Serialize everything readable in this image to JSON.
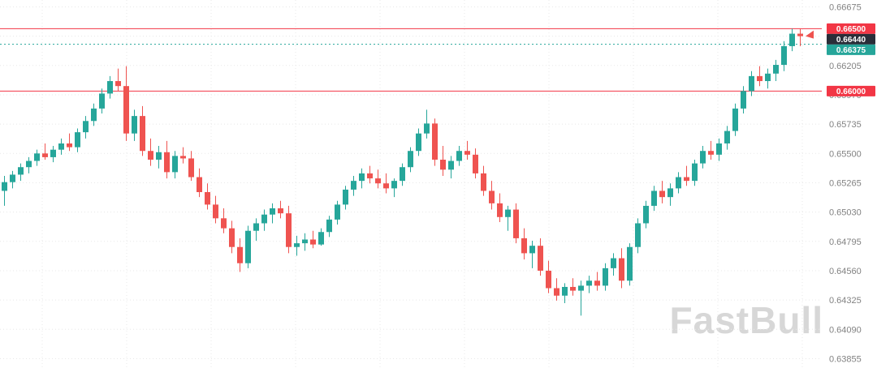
{
  "watermark": {
    "text": "FastBull"
  },
  "colors": {
    "up": "#26a69a",
    "down": "#ef5350",
    "level_red": "#f23645",
    "level_teal": "#26a69a",
    "last_price_box": "#2a2e39",
    "axis_text": "#828282",
    "grid": "#e8e8e8",
    "background": "#ffffff"
  },
  "chart_data": {
    "type": "candlestick",
    "ylim": [
      0.6378,
      0.6673
    ],
    "grid": true,
    "y_ticks": [
      "0.66675",
      "0.66440",
      "0.66205",
      "0.65970",
      "0.65735",
      "0.65500",
      "0.65265",
      "0.65030",
      "0.64795",
      "0.64560",
      "0.64325",
      "0.64090",
      "0.63855"
    ],
    "levels": [
      {
        "value": 0.665,
        "label": "0.66500",
        "style": "solid",
        "color": "#f23645",
        "box_bg": "#f23645"
      },
      {
        "value": 0.66,
        "label": "0.66000",
        "style": "solid",
        "color": "#f23645",
        "box_bg": "#f23645"
      },
      {
        "value": 0.66375,
        "label": "0.66375",
        "style": "dotted",
        "color": "#26a69a",
        "box_bg": "#26a69a"
      }
    ],
    "last_price": {
      "value": 0.6644,
      "label": "0.66440",
      "box_bg": "#2a2e39"
    },
    "candles": [
      [
        0.652,
        0.6532,
        0.6508,
        0.6527
      ],
      [
        0.6527,
        0.6536,
        0.6522,
        0.6533
      ],
      [
        0.6533,
        0.6542,
        0.6528,
        0.6539
      ],
      [
        0.6539,
        0.6547,
        0.6534,
        0.6544
      ],
      [
        0.6544,
        0.6553,
        0.654,
        0.655
      ],
      [
        0.655,
        0.6558,
        0.6545,
        0.6547
      ],
      [
        0.6547,
        0.6556,
        0.6543,
        0.6553
      ],
      [
        0.6553,
        0.6562,
        0.6549,
        0.6558
      ],
      [
        0.6558,
        0.6566,
        0.6552,
        0.6555
      ],
      [
        0.6555,
        0.657,
        0.6551,
        0.6567
      ],
      [
        0.6567,
        0.658,
        0.6562,
        0.6576
      ],
      [
        0.6576,
        0.659,
        0.6572,
        0.6586
      ],
      [
        0.6586,
        0.6602,
        0.6582,
        0.6598
      ],
      [
        0.6598,
        0.6612,
        0.6594,
        0.6608
      ],
      [
        0.6608,
        0.6618,
        0.66,
        0.6604
      ],
      [
        0.6604,
        0.662,
        0.656,
        0.6566
      ],
      [
        0.6566,
        0.6585,
        0.656,
        0.658
      ],
      [
        0.658,
        0.6588,
        0.6548,
        0.6552
      ],
      [
        0.6552,
        0.6562,
        0.654,
        0.6545
      ],
      [
        0.6545,
        0.6556,
        0.6538,
        0.6551
      ],
      [
        0.6551,
        0.656,
        0.653,
        0.6535
      ],
      [
        0.6535,
        0.6552,
        0.653,
        0.6548
      ],
      [
        0.6548,
        0.6555,
        0.6542,
        0.6546
      ],
      [
        0.6546,
        0.6552,
        0.6528,
        0.6531
      ],
      [
        0.6531,
        0.6538,
        0.6515,
        0.6519
      ],
      [
        0.6519,
        0.6526,
        0.6505,
        0.6509
      ],
      [
        0.6509,
        0.6516,
        0.6494,
        0.6498
      ],
      [
        0.6498,
        0.6506,
        0.6486,
        0.649
      ],
      [
        0.649,
        0.6496,
        0.647,
        0.6475
      ],
      [
        0.6475,
        0.6482,
        0.6455,
        0.6462
      ],
      [
        0.6462,
        0.6492,
        0.6458,
        0.6488
      ],
      [
        0.6488,
        0.6498,
        0.648,
        0.6494
      ],
      [
        0.6494,
        0.6505,
        0.6488,
        0.6501
      ],
      [
        0.6501,
        0.651,
        0.6494,
        0.6506
      ],
      [
        0.6506,
        0.6512,
        0.6498,
        0.6502
      ],
      [
        0.6502,
        0.6508,
        0.647,
        0.6475
      ],
      [
        0.6475,
        0.6484,
        0.6468,
        0.6478
      ],
      [
        0.6478,
        0.6486,
        0.6472,
        0.6481
      ],
      [
        0.6481,
        0.6488,
        0.6474,
        0.6477
      ],
      [
        0.6477,
        0.649,
        0.6476,
        0.6487
      ],
      [
        0.6487,
        0.65,
        0.6483,
        0.6497
      ],
      [
        0.6497,
        0.6512,
        0.6493,
        0.6509
      ],
      [
        0.6509,
        0.6524,
        0.6505,
        0.6521
      ],
      [
        0.6521,
        0.6532,
        0.6516,
        0.6528
      ],
      [
        0.6528,
        0.6538,
        0.6522,
        0.6534
      ],
      [
        0.6534,
        0.654,
        0.6526,
        0.653
      ],
      [
        0.653,
        0.6537,
        0.6522,
        0.6526
      ],
      [
        0.6526,
        0.6534,
        0.6518,
        0.6522
      ],
      [
        0.6522,
        0.653,
        0.6515,
        0.6528
      ],
      [
        0.6528,
        0.6542,
        0.6524,
        0.6539
      ],
      [
        0.6539,
        0.6555,
        0.6535,
        0.6552
      ],
      [
        0.6552,
        0.657,
        0.6548,
        0.6566
      ],
      [
        0.6566,
        0.6585,
        0.6562,
        0.6574
      ],
      [
        0.6574,
        0.6578,
        0.654,
        0.6545
      ],
      [
        0.6545,
        0.6556,
        0.6532,
        0.6537
      ],
      [
        0.6537,
        0.6548,
        0.653,
        0.6544
      ],
      [
        0.6544,
        0.6556,
        0.654,
        0.6552
      ],
      [
        0.6552,
        0.656,
        0.6545,
        0.6549
      ],
      [
        0.6549,
        0.6554,
        0.653,
        0.6534
      ],
      [
        0.6534,
        0.654,
        0.6516,
        0.652
      ],
      [
        0.652,
        0.6528,
        0.6505,
        0.651
      ],
      [
        0.651,
        0.6518,
        0.6495,
        0.6499
      ],
      [
        0.6499,
        0.6508,
        0.6488,
        0.6505
      ],
      [
        0.6505,
        0.651,
        0.6478,
        0.6482
      ],
      [
        0.6482,
        0.649,
        0.6465,
        0.647
      ],
      [
        0.647,
        0.648,
        0.6458,
        0.6476
      ],
      [
        0.6476,
        0.6482,
        0.6452,
        0.6456
      ],
      [
        0.6456,
        0.6464,
        0.6438,
        0.6442
      ],
      [
        0.6442,
        0.645,
        0.6432,
        0.6436
      ],
      [
        0.6436,
        0.6446,
        0.643,
        0.6443
      ],
      [
        0.6443,
        0.645,
        0.6436,
        0.644
      ],
      [
        0.644,
        0.6448,
        0.642,
        0.6444
      ],
      [
        0.6444,
        0.6452,
        0.6438,
        0.6448
      ],
      [
        0.6448,
        0.6455,
        0.644,
        0.6444
      ],
      [
        0.6444,
        0.6462,
        0.644,
        0.6458
      ],
      [
        0.6458,
        0.647,
        0.6452,
        0.6466
      ],
      [
        0.6466,
        0.6474,
        0.6442,
        0.6448
      ],
      [
        0.6448,
        0.6478,
        0.6444,
        0.6475
      ],
      [
        0.6475,
        0.6498,
        0.647,
        0.6494
      ],
      [
        0.6494,
        0.6512,
        0.649,
        0.6508
      ],
      [
        0.6508,
        0.6524,
        0.6504,
        0.652
      ],
      [
        0.652,
        0.6528,
        0.651,
        0.6515
      ],
      [
        0.6515,
        0.6526,
        0.6508,
        0.6522
      ],
      [
        0.6522,
        0.6535,
        0.6518,
        0.6531
      ],
      [
        0.6531,
        0.654,
        0.6524,
        0.6528
      ],
      [
        0.6528,
        0.6545,
        0.6524,
        0.6542
      ],
      [
        0.6542,
        0.6556,
        0.6538,
        0.6552
      ],
      [
        0.6552,
        0.656,
        0.6545,
        0.6549
      ],
      [
        0.6549,
        0.6562,
        0.6544,
        0.6558
      ],
      [
        0.6558,
        0.6572,
        0.6553,
        0.6568
      ],
      [
        0.6568,
        0.659,
        0.6564,
        0.6586
      ],
      [
        0.6586,
        0.6604,
        0.6582,
        0.66
      ],
      [
        0.66,
        0.6616,
        0.6596,
        0.6612
      ],
      [
        0.6612,
        0.662,
        0.6604,
        0.6608
      ],
      [
        0.6608,
        0.6618,
        0.6602,
        0.6614
      ],
      [
        0.6614,
        0.6625,
        0.6608,
        0.6621
      ],
      [
        0.6621,
        0.664,
        0.6616,
        0.6636
      ],
      [
        0.6636,
        0.665,
        0.6632,
        0.6646
      ],
      [
        0.6646,
        0.665,
        0.6636,
        0.6644
      ]
    ]
  }
}
